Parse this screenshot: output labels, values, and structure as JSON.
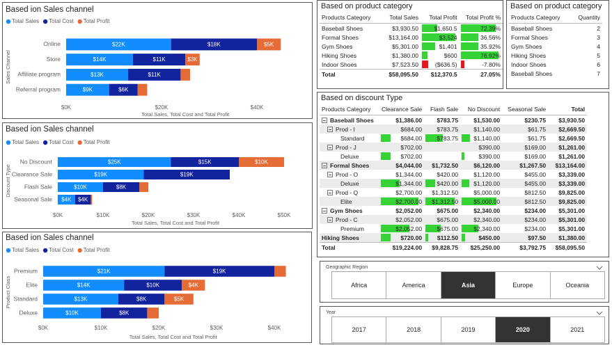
{
  "chart_data": [
    {
      "type": "bar",
      "stacked": true,
      "title": "Based ion Sales channel",
      "x_label": "Total Sales, Total Cost and Total Profit",
      "y_label": "Sales Channel",
      "categories": [
        "Online",
        "Store",
        "Affiliate program",
        "Referral program"
      ],
      "series": [
        {
          "name": "Total Sales",
          "color": "#118DFF",
          "values": [
            22000,
            14000,
            13000,
            9000
          ],
          "value_labels": [
            "$22K",
            "$14K",
            "$13K",
            "$9K"
          ]
        },
        {
          "name": "Total Cost",
          "color": "#12239E",
          "values": [
            18000,
            11000,
            11000,
            6000
          ],
          "value_labels": [
            "$18K",
            "$11K",
            "$11K",
            "$6K"
          ]
        },
        {
          "name": "Total Profit",
          "color": "#E66C37",
          "values": [
            5000,
            3000,
            2000,
            2000
          ],
          "value_labels": [
            "$5K",
            "$3K",
            null,
            null
          ]
        }
      ],
      "xlim": [
        0,
        50000
      ],
      "xticks": [
        {
          "value": 0,
          "label": "$0K"
        },
        {
          "value": 20000,
          "label": "$20K"
        },
        {
          "value": 40000,
          "label": "$40K"
        }
      ],
      "grid": false,
      "legend": "top-left"
    },
    {
      "type": "bar",
      "stacked": true,
      "title": "Based ion Sales channel",
      "x_label": "Total Sales, Total Cost and Total Profit",
      "y_label": "Discount Type",
      "categories": [
        "No Discount",
        "Clearance Sale",
        "Flash Sale",
        "Seasonal Sale"
      ],
      "series": [
        {
          "name": "Total Sales",
          "color": "#118DFF",
          "values": [
            25000,
            19000,
            10000,
            3800
          ],
          "value_labels": [
            "$25K",
            "$19K",
            "$10K",
            "$4K"
          ]
        },
        {
          "name": "Total Cost",
          "color": "#12239E",
          "values": [
            15000,
            19000,
            8000,
            3500
          ],
          "value_labels": [
            "$15K",
            "$19K",
            "$8K",
            "$4K"
          ]
        },
        {
          "name": "Total Profit",
          "color": "#E66C37",
          "values": [
            10000,
            0,
            2000,
            300
          ],
          "value_labels": [
            "$10K",
            null,
            null,
            null
          ]
        }
      ],
      "xlim": [
        0,
        52000
      ],
      "xticks": [
        {
          "value": 0,
          "label": "$0K"
        },
        {
          "value": 10000,
          "label": "$10K"
        },
        {
          "value": 20000,
          "label": "$20K"
        },
        {
          "value": 30000,
          "label": "$30K"
        },
        {
          "value": 40000,
          "label": "$40K"
        },
        {
          "value": 50000,
          "label": "$50K"
        }
      ],
      "grid": false,
      "legend": "top-left"
    },
    {
      "type": "bar",
      "stacked": true,
      "title": "Based ion Sales channel",
      "x_label": "Total Sales, Total Cost and Total Profit",
      "y_label": "Product Class",
      "categories": [
        "Premium",
        "Elite",
        "Standard",
        "Deluxe"
      ],
      "series": [
        {
          "name": "Total Sales",
          "color": "#118DFF",
          "values": [
            21000,
            14000,
            13000,
            10000
          ],
          "value_labels": [
            "$21K",
            "$14K",
            "$13K",
            "$10K"
          ]
        },
        {
          "name": "Total Cost",
          "color": "#12239E",
          "values": [
            19000,
            10000,
            8000,
            8000
          ],
          "value_labels": [
            "$19K",
            "$10K",
            "$8K",
            "$8K"
          ]
        },
        {
          "name": "Total Profit",
          "color": "#E66C37",
          "values": [
            2000,
            4000,
            5000,
            2000
          ],
          "value_labels": [
            null,
            "$4K",
            "$5K",
            null
          ]
        }
      ],
      "xlim": [
        0,
        45000
      ],
      "xticks": [
        {
          "value": 0,
          "label": "$0K"
        },
        {
          "value": 10000,
          "label": "$10K"
        },
        {
          "value": 20000,
          "label": "$20K"
        },
        {
          "value": 30000,
          "label": "$30K"
        },
        {
          "value": 40000,
          "label": "$40K"
        }
      ],
      "grid": false,
      "legend": "top-left"
    }
  ],
  "product_sales": {
    "title": "Based on product category",
    "columns": [
      "Products Category",
      "Total Sales",
      "Total Profit",
      "Total Profit %"
    ],
    "rows": [
      [
        "Baseball Shoes",
        "$3,930.50",
        "$1,650.5",
        "72.39%"
      ],
      [
        "Formal Shoes",
        "$13,164.00",
        "$3,524",
        "36.56%"
      ],
      [
        "Gym Shoes",
        "$5,301.00",
        "$1,401",
        "35.92%"
      ],
      [
        "Hiking Shoes",
        "$1,380.00",
        "$600",
        "76.92%"
      ],
      [
        "Indoor Shoes",
        "$7,523.50",
        "($636.5)",
        "-7.80%"
      ]
    ],
    "total": [
      "Total",
      "$58,095.50",
      "$12,370.5",
      "27.05%"
    ]
  },
  "product_quantity": {
    "title": "Based on product category",
    "columns": [
      "Products Category",
      "Quantity"
    ],
    "rows": [
      [
        "Baseball Shoes",
        2
      ],
      [
        "Formal Shoes",
        3
      ],
      [
        "Gym Shoes",
        4
      ],
      [
        "Hiking Shoes",
        5
      ],
      [
        "Indoor Shoes",
        6
      ],
      [
        "Baseball Shoes",
        7
      ]
    ]
  },
  "discount_matrix": {
    "title": "Based on discount Type",
    "columns": [
      "Products Category",
      "Clearance Sale",
      "Flash Sale",
      "No Discount",
      "Seasonal Sale",
      "Total"
    ],
    "rows": [
      {
        "label": "Baseball Shoes",
        "cells": [
          "$1,386.00",
          "$783.75",
          "$1,530.00",
          "$230.75",
          "$3,930.50"
        ],
        "children": [
          {
            "label": "Prod - I",
            "cells": [
              "$684.00",
              "$783.75",
              "$1,140.00",
              "$61.75",
              "$2,669.50"
            ],
            "children": [
              {
                "label": "Standard",
                "cells": [
                  "$684.00",
                  "$783.75",
                  "$1,140.00",
                  "$61.75",
                  "$2,669.50"
                ]
              }
            ]
          },
          {
            "label": "Prod - J",
            "cells": [
              "$702.00",
              null,
              "$390.00",
              "$169.00",
              "$1,261.00"
            ],
            "children": [
              {
                "label": "Deluxe",
                "cells": [
                  "$702.00",
                  null,
                  "$390.00",
                  "$169.00",
                  "$1,261.00"
                ]
              }
            ]
          }
        ]
      },
      {
        "label": "Formal Shoes",
        "cells": [
          "$4,044.00",
          "$1,732.50",
          "$6,120.00",
          "$1,267.50",
          "$13,164.00"
        ],
        "children": [
          {
            "label": "Prod - O",
            "cells": [
              "$1,344.00",
              "$420.00",
              "$1,120.00",
              "$455.00",
              "$3,339.00"
            ],
            "children": [
              {
                "label": "Deluxe",
                "cells": [
                  "$1,344.00",
                  "$420.00",
                  "$1,120.00",
                  "$455.00",
                  "$3,339.00"
                ]
              }
            ]
          },
          {
            "label": "Prod - Q",
            "cells": [
              "$2,700.00",
              "$1,312.50",
              "$5,000.00",
              "$812.50",
              "$9,825.00"
            ],
            "children": [
              {
                "label": "Elite",
                "cells": [
                  "$2,700.00",
                  "$1,312.50",
                  "$5,000.00",
                  "$812.50",
                  "$9,825.00"
                ]
              }
            ]
          }
        ]
      },
      {
        "label": "Gym Shoes",
        "cells": [
          "$2,052.00",
          "$675.00",
          "$2,340.00",
          "$234.00",
          "$5,301.00"
        ],
        "children": [
          {
            "label": "Prod - C",
            "cells": [
              "$2,052.00",
              "$675.00",
              "$2,340.00",
              "$234.00",
              "$5,301.00"
            ],
            "children": [
              {
                "label": "Premium",
                "cells": [
                  "$2,052.00",
                  "$675.00",
                  "$2,340.00",
                  "$234.00",
                  "$5,301.00"
                ]
              }
            ]
          }
        ]
      },
      {
        "label": "Hiking Shoes",
        "cells": [
          "$720.00",
          "$112.50",
          "$450.00",
          "$97.50",
          "$1,380.00"
        ]
      }
    ],
    "total": {
      "label": "Total",
      "cells": [
        "$19,224.00",
        "$9,828.75",
        "$25,250.00",
        "$3,792.75",
        "$58,095.50"
      ]
    }
  },
  "region_slicer": {
    "title": "Geographic Region",
    "options": [
      "Africa",
      "America",
      "Asia",
      "Europe",
      "Oceania"
    ],
    "selected": 2
  },
  "year_slicer": {
    "title": "Year",
    "options": [
      "2017",
      "2018",
      "2019",
      "2020",
      "2021"
    ],
    "selected": 3
  }
}
